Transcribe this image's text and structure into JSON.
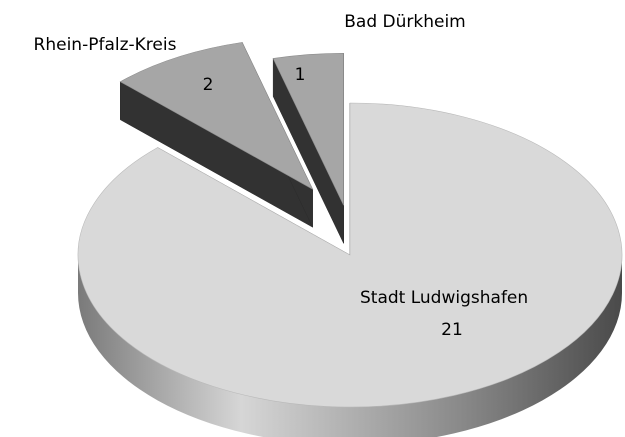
{
  "chart_data": {
    "type": "pie3d",
    "categories": [
      "Stadt Ludwigshafen",
      "Rhein-Pfalz-Kreis",
      "Bad Dürkheim"
    ],
    "values": [
      21,
      2,
      1
    ],
    "colors": [
      "#d9d9d9",
      "#a6a6a6",
      "#a6a6a6"
    ]
  }
}
